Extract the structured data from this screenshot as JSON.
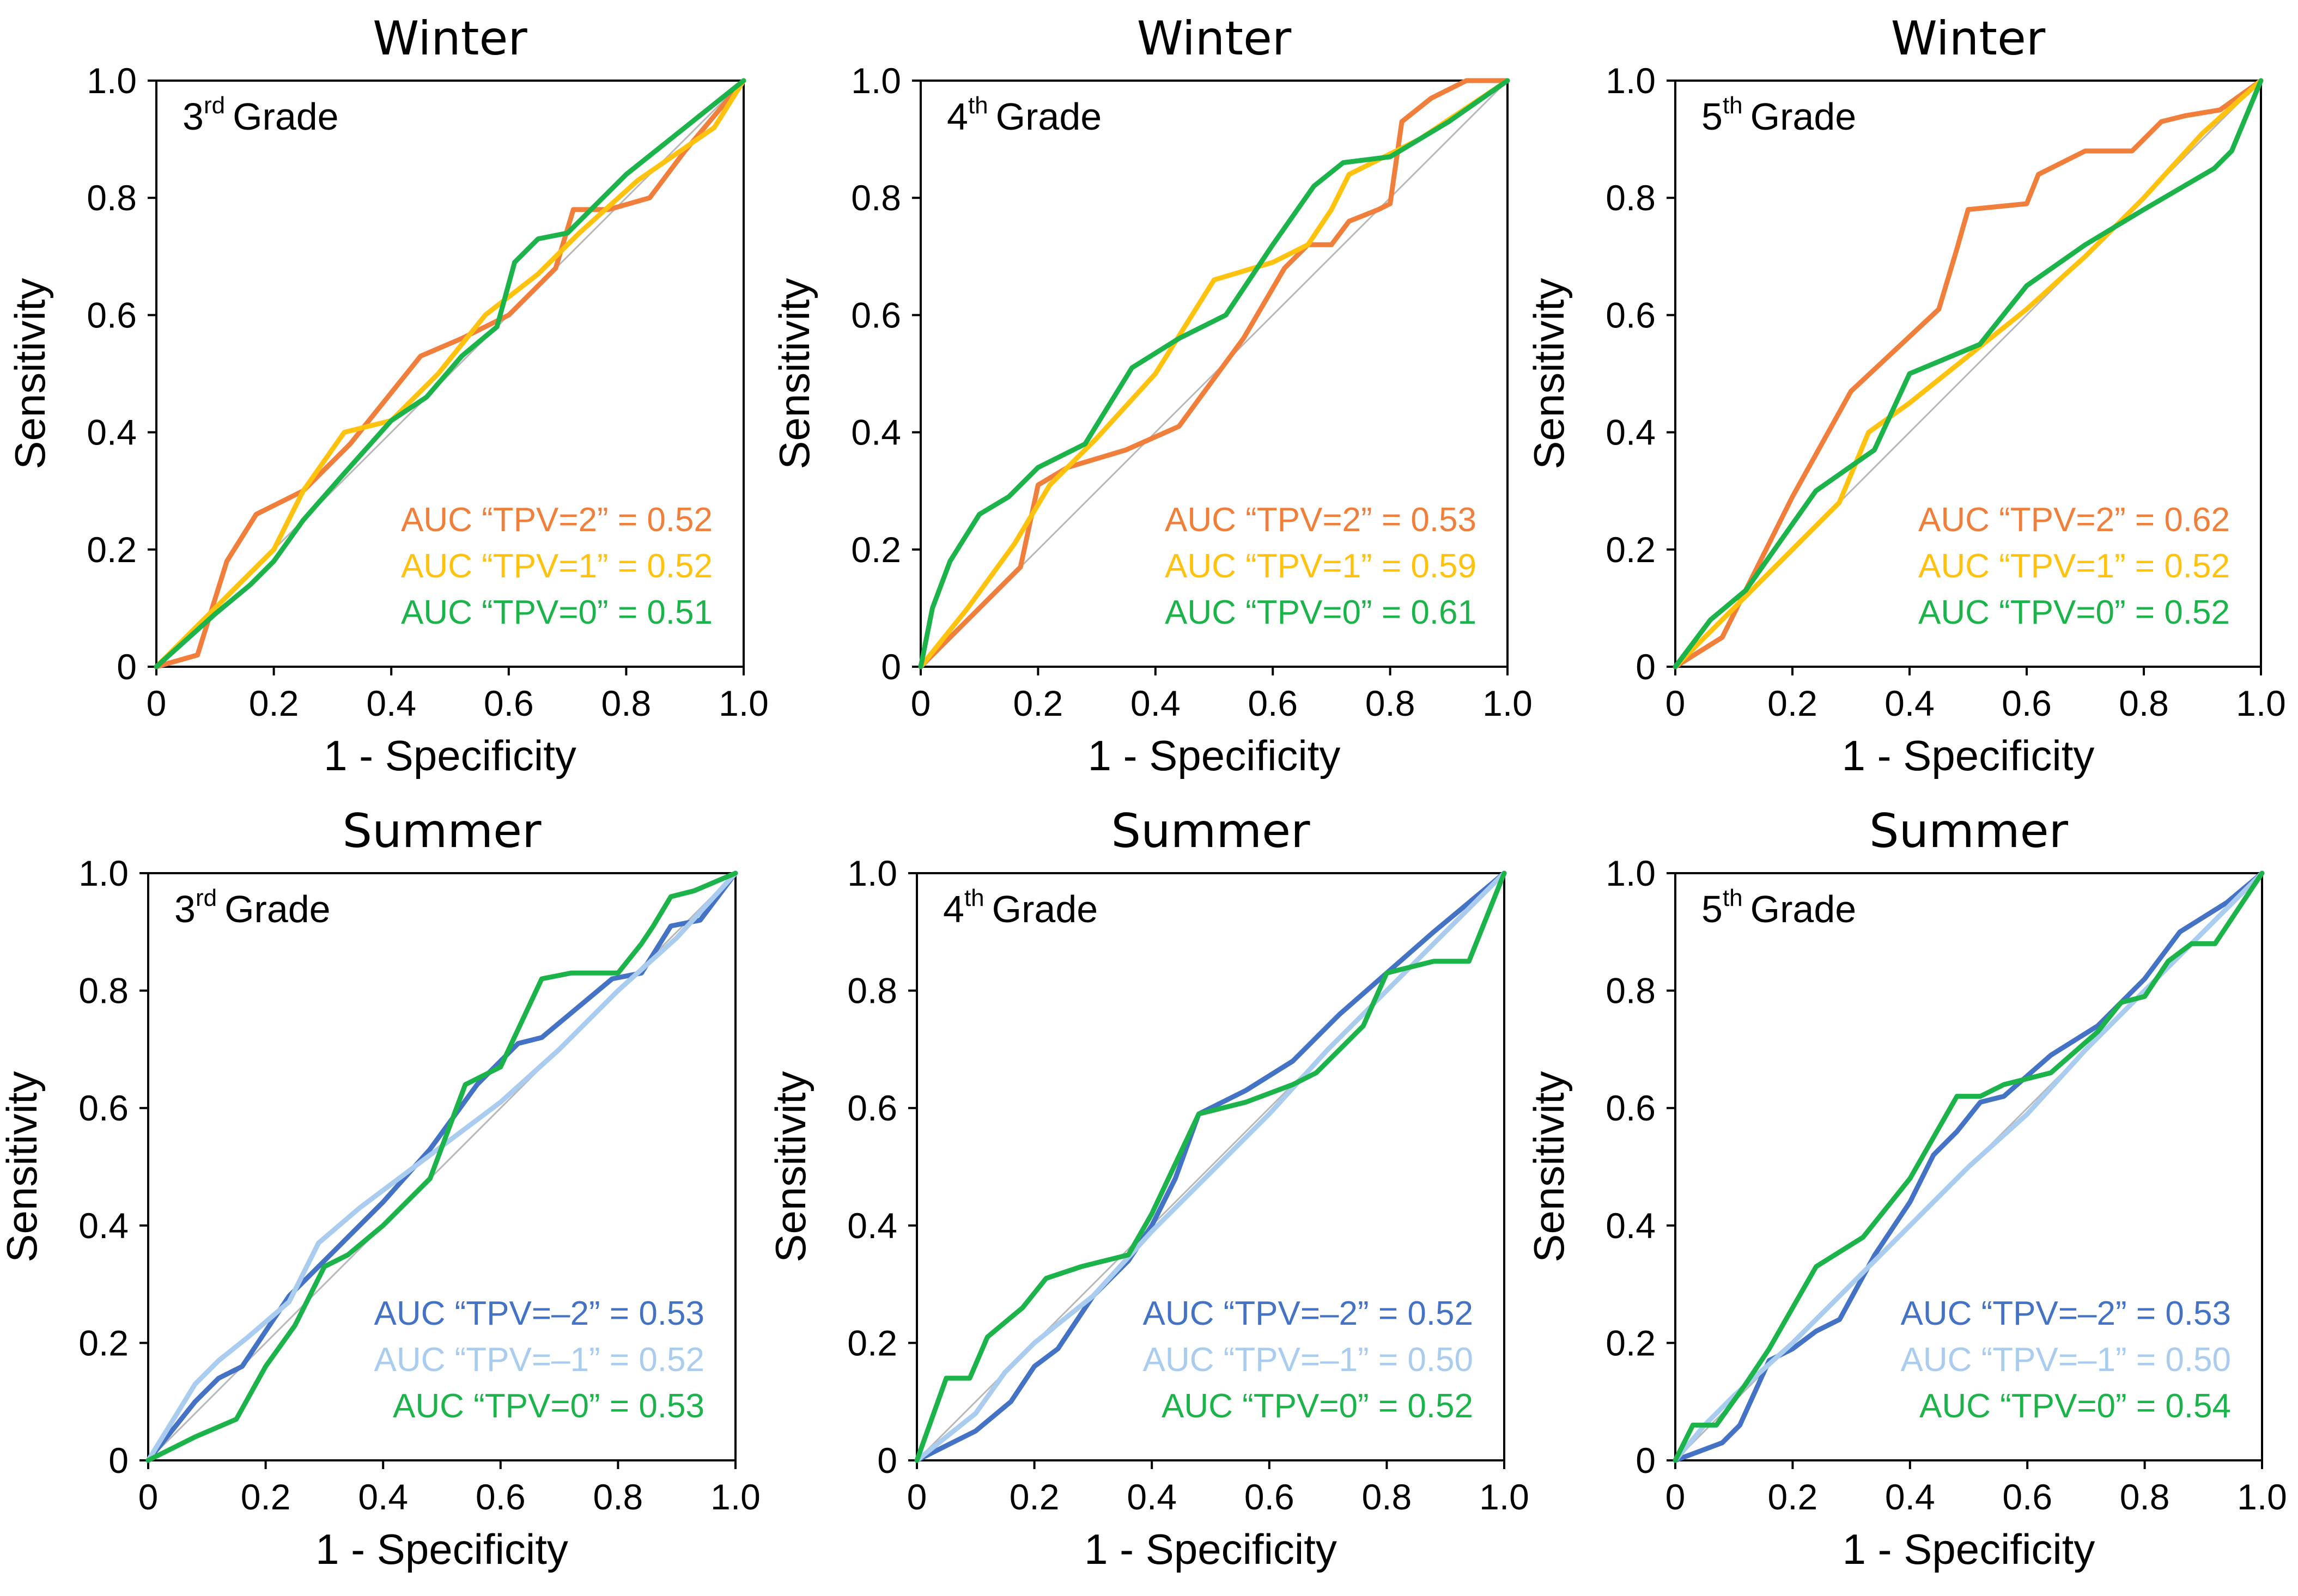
{
  "figure": {
    "x_label": "1 - Specificity",
    "y_label": "Sensitivity"
  },
  "colors": {
    "TPV=2": "#F07F3C",
    "TPV=1": "#FFC20E",
    "TPV=0": "#1BB34A",
    "TPV=-2": "#4472C4",
    "TPV=-1": "#A9CCEF",
    "reference": "#B8B8B8"
  },
  "chart_data": [
    {
      "type": "line",
      "title": "Winter",
      "grade_num": "3",
      "grade_sup": "rd",
      "grade_text": "Grade",
      "xlabel": "1 - Specificity",
      "ylabel": "Sensitivity",
      "xlim": [
        0,
        1
      ],
      "ylim": [
        0,
        1
      ],
      "x_ticks": [
        "0",
        "0.2",
        "0.4",
        "0.6",
        "0.8",
        "1.0"
      ],
      "y_ticks": [
        "0",
        "0.2",
        "0.4",
        "0.6",
        "0.8",
        "1.0"
      ],
      "series": [
        {
          "name": "TPV=2",
          "color": "#F07F3C",
          "auc_label": "AUC “TPV=2” = 0.52",
          "x": [
            0,
            0.07,
            0.12,
            0.17,
            0.25,
            0.33,
            0.45,
            0.52,
            0.6,
            0.68,
            0.71,
            0.77,
            0.84,
            0.9,
            1.0
          ],
          "y": [
            0,
            0.02,
            0.18,
            0.26,
            0.3,
            0.38,
            0.53,
            0.56,
            0.6,
            0.68,
            0.78,
            0.78,
            0.8,
            0.88,
            1.0
          ]
        },
        {
          "name": "TPV=1",
          "color": "#FFC20E",
          "auc_label": "AUC “TPV=1” = 0.52",
          "x": [
            0,
            0.1,
            0.2,
            0.25,
            0.32,
            0.4,
            0.48,
            0.56,
            0.65,
            0.72,
            0.82,
            0.95,
            1.0
          ],
          "y": [
            0,
            0.1,
            0.2,
            0.3,
            0.4,
            0.42,
            0.5,
            0.6,
            0.67,
            0.74,
            0.83,
            0.92,
            1.0
          ]
        },
        {
          "name": "TPV=0",
          "color": "#1BB34A",
          "auc_label": "AUC “TPV=0” = 0.51",
          "x": [
            0,
            0.1,
            0.16,
            0.2,
            0.25,
            0.32,
            0.4,
            0.46,
            0.52,
            0.58,
            0.61,
            0.65,
            0.7,
            0.8,
            0.9,
            1.0
          ],
          "y": [
            0,
            0.09,
            0.14,
            0.18,
            0.25,
            0.33,
            0.42,
            0.46,
            0.53,
            0.58,
            0.69,
            0.73,
            0.74,
            0.84,
            0.92,
            1.0
          ]
        }
      ]
    },
    {
      "type": "line",
      "title": "Winter",
      "grade_num": "4",
      "grade_sup": "th",
      "grade_text": "Grade",
      "xlabel": "1 - Specificity",
      "ylabel": "Sensitivity",
      "xlim": [
        0,
        1
      ],
      "ylim": [
        0,
        1
      ],
      "x_ticks": [
        "0",
        "0.2",
        "0.4",
        "0.6",
        "0.8",
        "1.0"
      ],
      "y_ticks": [
        "0",
        "0.2",
        "0.4",
        "0.6",
        "0.8",
        "1.0"
      ],
      "series": [
        {
          "name": "TPV=2",
          "color": "#F07F3C",
          "auc_label": "AUC “TPV=2” = 0.53",
          "x": [
            0,
            0.17,
            0.2,
            0.25,
            0.35,
            0.44,
            0.55,
            0.62,
            0.66,
            0.7,
            0.73,
            0.78,
            0.8,
            0.82,
            0.87,
            0.93,
            1.0
          ],
          "y": [
            0,
            0.17,
            0.31,
            0.34,
            0.37,
            0.41,
            0.56,
            0.68,
            0.72,
            0.72,
            0.76,
            0.78,
            0.79,
            0.93,
            0.97,
            1.0,
            1.0
          ]
        },
        {
          "name": "TPV=1",
          "color": "#FFC20E",
          "auc_label": "AUC “TPV=1” = 0.59",
          "x": [
            0,
            0.08,
            0.16,
            0.22,
            0.3,
            0.4,
            0.5,
            0.6,
            0.66,
            0.7,
            0.73,
            0.85,
            1.0
          ],
          "y": [
            0,
            0.1,
            0.21,
            0.31,
            0.39,
            0.5,
            0.66,
            0.69,
            0.72,
            0.78,
            0.84,
            0.9,
            1.0
          ]
        },
        {
          "name": "TPV=0",
          "color": "#1BB34A",
          "auc_label": "AUC “TPV=0” = 0.61",
          "x": [
            0,
            0.02,
            0.05,
            0.1,
            0.15,
            0.2,
            0.28,
            0.36,
            0.44,
            0.52,
            0.6,
            0.67,
            0.72,
            0.8,
            0.9,
            1.0
          ],
          "y": [
            0,
            0.1,
            0.18,
            0.26,
            0.29,
            0.34,
            0.38,
            0.51,
            0.56,
            0.6,
            0.72,
            0.82,
            0.86,
            0.87,
            0.93,
            1.0
          ]
        }
      ]
    },
    {
      "type": "line",
      "title": "Winter",
      "grade_num": "5",
      "grade_sup": "th",
      "grade_text": "Grade",
      "xlabel": "1 - Specificity",
      "ylabel": "Sensitivity",
      "xlim": [
        0,
        1
      ],
      "ylim": [
        0,
        1
      ],
      "x_ticks": [
        "0",
        "0.2",
        "0.4",
        "0.6",
        "0.8",
        "1.0"
      ],
      "y_ticks": [
        "0",
        "0.2",
        "0.4",
        "0.6",
        "0.8",
        "1.0"
      ],
      "series": [
        {
          "name": "TPV=2",
          "color": "#F07F3C",
          "auc_label": "AUC “TPV=2” = 0.62",
          "x": [
            0,
            0.08,
            0.2,
            0.3,
            0.45,
            0.48,
            0.5,
            0.6,
            0.62,
            0.7,
            0.78,
            0.83,
            0.87,
            0.93,
            1.0
          ],
          "y": [
            0,
            0.05,
            0.29,
            0.47,
            0.61,
            0.71,
            0.78,
            0.79,
            0.84,
            0.88,
            0.88,
            0.93,
            0.94,
            0.95,
            1.0
          ]
        },
        {
          "name": "TPV=1",
          "color": "#FFC20E",
          "auc_label": "AUC “TPV=1” = 0.52",
          "x": [
            0,
            0.1,
            0.2,
            0.28,
            0.33,
            0.4,
            0.5,
            0.6,
            0.7,
            0.8,
            0.9,
            1.0
          ],
          "y": [
            0,
            0.1,
            0.2,
            0.28,
            0.4,
            0.45,
            0.53,
            0.61,
            0.7,
            0.8,
            0.91,
            1.0
          ]
        },
        {
          "name": "TPV=0",
          "color": "#1BB34A",
          "auc_label": "AUC “TPV=0” = 0.52",
          "x": [
            0,
            0.06,
            0.12,
            0.24,
            0.34,
            0.4,
            0.52,
            0.6,
            0.7,
            0.8,
            0.92,
            0.95,
            1.0
          ],
          "y": [
            0,
            0.08,
            0.13,
            0.3,
            0.37,
            0.5,
            0.55,
            0.65,
            0.72,
            0.78,
            0.85,
            0.88,
            1.0
          ]
        }
      ]
    },
    {
      "type": "line",
      "title": "Summer",
      "grade_num": "3",
      "grade_sup": "rd",
      "grade_text": "Grade",
      "xlabel": "1 - Specificity",
      "ylabel": "Sensitivity",
      "xlim": [
        0,
        1
      ],
      "ylim": [
        0,
        1
      ],
      "x_ticks": [
        "0",
        "0.2",
        "0.4",
        "0.6",
        "0.8",
        "1.0"
      ],
      "y_ticks": [
        "0",
        "0.2",
        "0.4",
        "0.6",
        "0.8",
        "1.0"
      ],
      "series": [
        {
          "name": "TPV=-2",
          "color": "#4472C4",
          "auc_label": "AUC “TPV=–2” = 0.53",
          "x": [
            0,
            0.08,
            0.12,
            0.16,
            0.24,
            0.32,
            0.4,
            0.48,
            0.56,
            0.63,
            0.67,
            0.73,
            0.79,
            0.84,
            0.89,
            0.94,
            1.0
          ],
          "y": [
            0,
            0.1,
            0.14,
            0.16,
            0.28,
            0.36,
            0.44,
            0.53,
            0.64,
            0.71,
            0.72,
            0.77,
            0.82,
            0.83,
            0.91,
            0.92,
            1.0
          ]
        },
        {
          "name": "TPV=-1",
          "color": "#A9CCEF",
          "auc_label": "AUC “TPV=–1” = 0.52",
          "x": [
            0,
            0.08,
            0.12,
            0.17,
            0.24,
            0.29,
            0.36,
            0.44,
            0.52,
            0.6,
            0.7,
            0.8,
            0.9,
            1.0
          ],
          "y": [
            0,
            0.13,
            0.17,
            0.21,
            0.27,
            0.37,
            0.43,
            0.49,
            0.55,
            0.61,
            0.7,
            0.8,
            0.89,
            1.0
          ]
        },
        {
          "name": "TPV=0",
          "color": "#1BB34A",
          "auc_label": "AUC “TPV=0” = 0.53",
          "x": [
            0,
            0.08,
            0.15,
            0.2,
            0.25,
            0.3,
            0.34,
            0.4,
            0.48,
            0.54,
            0.6,
            0.67,
            0.72,
            0.8,
            0.84,
            0.86,
            0.89,
            0.93,
            1.0
          ],
          "y": [
            0,
            0.04,
            0.07,
            0.16,
            0.23,
            0.33,
            0.35,
            0.4,
            0.48,
            0.64,
            0.67,
            0.82,
            0.83,
            0.83,
            0.88,
            0.91,
            0.96,
            0.97,
            1.0
          ]
        }
      ]
    },
    {
      "type": "line",
      "title": "Summer",
      "grade_num": "4",
      "grade_sup": "th",
      "grade_text": "Grade",
      "xlabel": "1 - Specificity",
      "ylabel": "Sensitivity",
      "xlim": [
        0,
        1
      ],
      "ylim": [
        0,
        1
      ],
      "x_ticks": [
        "0",
        "0.2",
        "0.4",
        "0.6",
        "0.8",
        "1.0"
      ],
      "y_ticks": [
        "0",
        "0.2",
        "0.4",
        "0.6",
        "0.8",
        "1.0"
      ],
      "series": [
        {
          "name": "TPV=-2",
          "color": "#4472C4",
          "auc_label": "AUC “TPV=–2” = 0.52",
          "x": [
            0,
            0.1,
            0.16,
            0.2,
            0.24,
            0.3,
            0.36,
            0.4,
            0.44,
            0.48,
            0.56,
            0.64,
            0.72,
            0.8,
            0.88,
            0.94,
            1.0
          ],
          "y": [
            0,
            0.05,
            0.1,
            0.16,
            0.19,
            0.28,
            0.34,
            0.4,
            0.48,
            0.59,
            0.63,
            0.68,
            0.76,
            0.83,
            0.9,
            0.95,
            1.0
          ]
        },
        {
          "name": "TPV=-1",
          "color": "#A9CCEF",
          "auc_label": "AUC “TPV=–1” = 0.50",
          "x": [
            0,
            0.1,
            0.15,
            0.2,
            0.3,
            0.4,
            0.5,
            0.6,
            0.7,
            0.8,
            0.9,
            1.0
          ],
          "y": [
            0,
            0.08,
            0.15,
            0.2,
            0.28,
            0.39,
            0.49,
            0.59,
            0.7,
            0.8,
            0.9,
            1.0
          ]
        },
        {
          "name": "TPV=0",
          "color": "#1BB34A",
          "auc_label": "AUC “TPV=0” = 0.52",
          "x": [
            0,
            0.05,
            0.09,
            0.12,
            0.18,
            0.22,
            0.28,
            0.36,
            0.4,
            0.48,
            0.56,
            0.64,
            0.68,
            0.72,
            0.76,
            0.8,
            0.88,
            0.94,
            1.0
          ],
          "y": [
            0,
            0.14,
            0.14,
            0.21,
            0.26,
            0.31,
            0.33,
            0.35,
            0.42,
            0.59,
            0.61,
            0.64,
            0.66,
            0.7,
            0.74,
            0.83,
            0.85,
            0.85,
            1.0
          ]
        }
      ]
    },
    {
      "type": "line",
      "title": "Summer",
      "grade_num": "5",
      "grade_sup": "th",
      "grade_text": "Grade",
      "xlabel": "1 - Specificity",
      "ylabel": "Sensitivity",
      "xlim": [
        0,
        1
      ],
      "ylim": [
        0,
        1
      ],
      "x_ticks": [
        "0",
        "0.2",
        "0.4",
        "0.6",
        "0.8",
        "1.0"
      ],
      "y_ticks": [
        "0",
        "0.2",
        "0.4",
        "0.6",
        "0.8",
        "1.0"
      ],
      "series": [
        {
          "name": "TPV=-2",
          "color": "#4472C4",
          "auc_label": "AUC “TPV=–2” = 0.53",
          "x": [
            0,
            0.08,
            0.11,
            0.16,
            0.2,
            0.24,
            0.28,
            0.34,
            0.4,
            0.44,
            0.48,
            0.52,
            0.56,
            0.64,
            0.72,
            0.8,
            0.86,
            0.94,
            1.0
          ],
          "y": [
            0,
            0.03,
            0.06,
            0.17,
            0.19,
            0.22,
            0.24,
            0.35,
            0.44,
            0.52,
            0.56,
            0.61,
            0.62,
            0.69,
            0.74,
            0.82,
            0.9,
            0.95,
            1.0
          ]
        },
        {
          "name": "TPV=-1",
          "color": "#A9CCEF",
          "auc_label": "AUC “TPV=–1” = 0.50",
          "x": [
            0,
            0.05,
            0.1,
            0.2,
            0.3,
            0.4,
            0.5,
            0.6,
            0.7,
            0.8,
            0.9,
            1.0
          ],
          "y": [
            0,
            0.06,
            0.11,
            0.2,
            0.3,
            0.4,
            0.5,
            0.59,
            0.7,
            0.8,
            0.9,
            1.0
          ]
        },
        {
          "name": "TPV=0",
          "color": "#1BB34A",
          "auc_label": "AUC “TPV=0” = 0.54",
          "x": [
            0,
            0.03,
            0.07,
            0.12,
            0.16,
            0.24,
            0.32,
            0.4,
            0.48,
            0.52,
            0.56,
            0.64,
            0.72,
            0.76,
            0.8,
            0.84,
            0.88,
            0.92,
            1.0
          ],
          "y": [
            0,
            0.06,
            0.06,
            0.13,
            0.19,
            0.33,
            0.38,
            0.48,
            0.62,
            0.62,
            0.64,
            0.66,
            0.73,
            0.78,
            0.79,
            0.85,
            0.88,
            0.88,
            1.0
          ]
        }
      ]
    }
  ]
}
